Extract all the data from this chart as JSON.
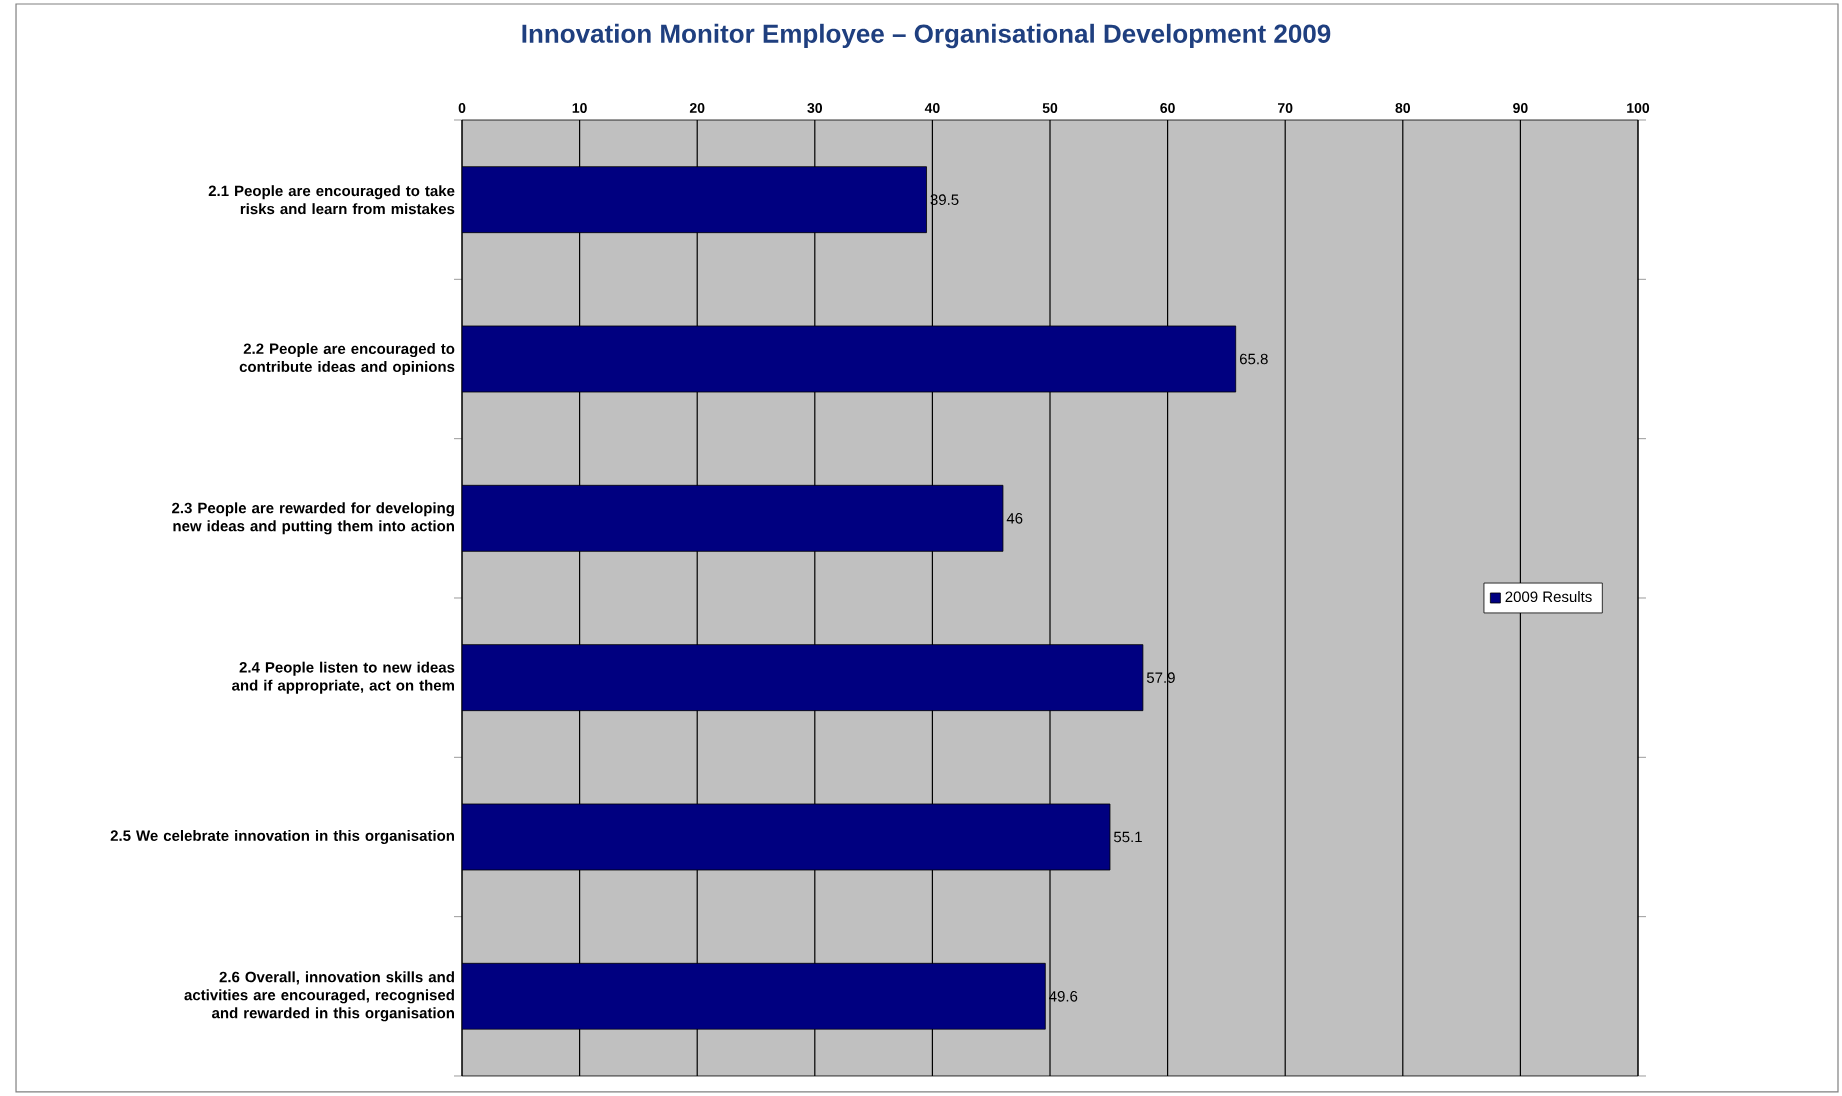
{
  "chart_data": {
    "type": "bar",
    "orientation": "horizontal",
    "title": "Innovation Monitor Employee – Organisational Development 2009",
    "categories": [
      "2.1 People are encouraged to take risks and learn from mistakes",
      "2.2 People are encouraged to contribute ideas and opinions",
      "2.3 People are rewarded for developing new ideas and putting them into action",
      "2.4 People listen to new ideas and if appropriate, act on them",
      "2.5 We celebrate innovation in this organisation",
      "2.6 Overall, innovation skills and activities are encouraged, recognised and rewarded in this organisation"
    ],
    "series": [
      {
        "name": "2009 Results",
        "color": "#000080",
        "values": [
          39.5,
          65.8,
          46,
          57.9,
          55.1,
          49.6
        ]
      }
    ],
    "xlim": [
      0,
      100
    ],
    "xticks": [
      0,
      10,
      20,
      30,
      40,
      50,
      60,
      70,
      80,
      90,
      100
    ],
    "grid": "x",
    "legend": "right",
    "data_labels": true
  }
}
